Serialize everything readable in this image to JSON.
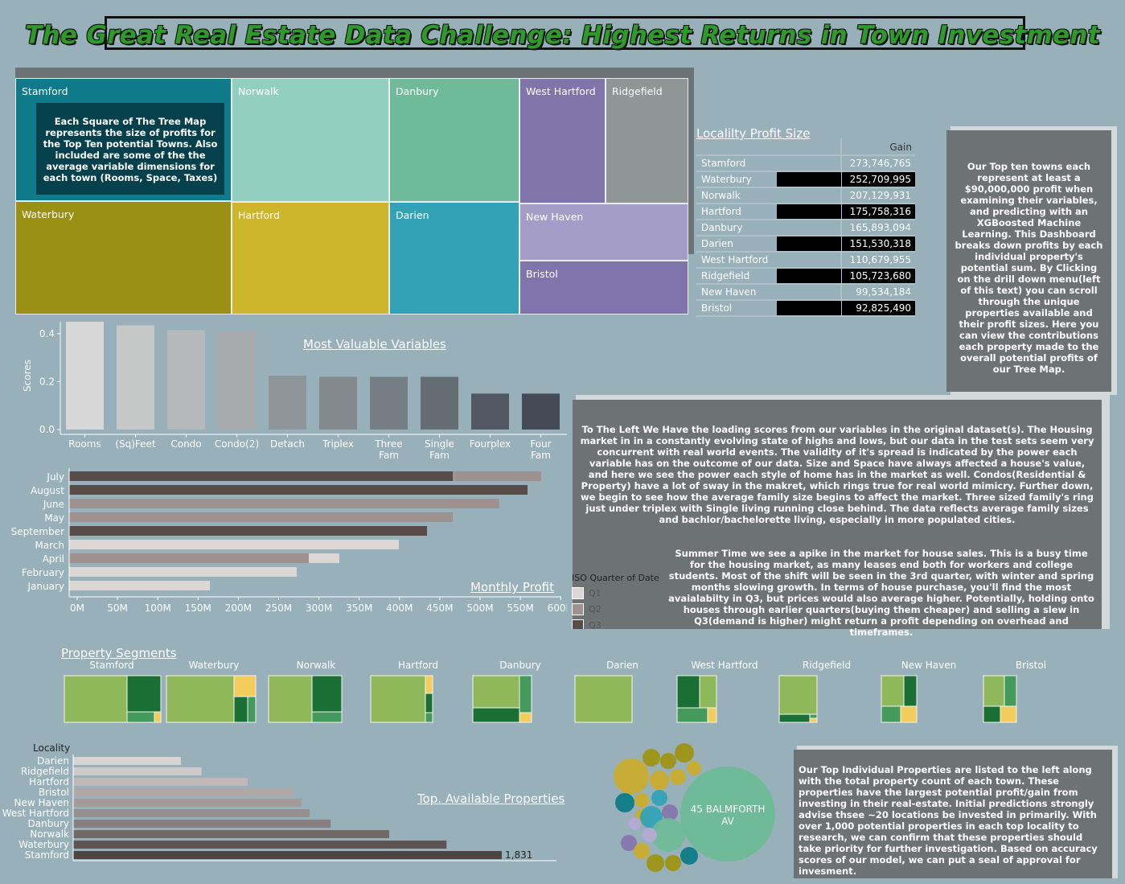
{
  "title": "The Great Real Estate Data Challenge: Highest Returns in Town Investment",
  "treemap": {
    "note": "Each Square of The Tree Map represents the size of profits for the Top Ten potential Towns. Also included are some of the the average variable dimensions for each town (Rooms, Space, Taxes)",
    "tiles": [
      {
        "label": "Stamford",
        "color": "#0f7a8a"
      },
      {
        "label": "Norwalk",
        "color": "#93cfbf"
      },
      {
        "label": "Danbury",
        "color": "#6fba98"
      },
      {
        "label": "West Hartford",
        "color": "#8075aa"
      },
      {
        "label": "Ridgefield",
        "color": "#8f9696"
      },
      {
        "label": "Waterbury",
        "color": "#9a9014"
      },
      {
        "label": "Hartford",
        "color": "#cdb52c"
      },
      {
        "label": "Darien",
        "color": "#34a2b6"
      },
      {
        "label": "New Haven",
        "color": "#a39dc8"
      },
      {
        "label": "Bristol",
        "color": "#8074ad"
      }
    ]
  },
  "profit_table": {
    "title": "Localilty Profit Size",
    "header": "Gain",
    "rows": [
      {
        "town": "Stamford",
        "gain": "273,746,765"
      },
      {
        "town": "Waterbury",
        "gain": "252,709,995"
      },
      {
        "town": "Norwalk",
        "gain": "207,129,931"
      },
      {
        "town": "Hartford",
        "gain": "175,758,316"
      },
      {
        "town": "Danbury",
        "gain": "165,893,094"
      },
      {
        "town": "Darien",
        "gain": "151,530,318"
      },
      {
        "town": "West Hartford",
        "gain": "110,679,955"
      },
      {
        "town": "Ridgefield",
        "gain": "105,723,680"
      },
      {
        "town": "New Haven",
        "gain": "99,534,184"
      },
      {
        "town": "Bristol",
        "gain": "92,825,490"
      }
    ]
  },
  "right_note": "Our Top ten towns each represent at least a $90,000,000 profit when examining their variables, and predicting with an XGBoosted Machine Learning. This Dashboard breaks down profits by each individual property's  potential sum. By Clicking on the drill down menu(left of this text) you can scroll through the unique properties available and their profit sizes. Here you can view the contributions each property made to the overall potential profits of our Tree Map.",
  "variables_note": "To The Left We Have the loading scores from our variables in the original dataset(s). The Housing market in in a constantly evolving state of highs and lows, but our data in the test sets seem very concurrent with real world events. The validity of it's spread is indicated by the power each variable has on the outcome of our data. Size and Space have always affected a house's value, and here we see the power each style of home has in the market as well. Condos(Residential & Property) have a lot of sway in the makret, which rings true for real world mimicry. Further down, we begin to see how the average family size begins to affect the market. Three sized family's  ring just under triplex with Single living running close behind. The data reflects average family sizes and bachlor/bachelorette living, especially in more populated cities.",
  "monthly_note": "Summer Time we see a apike in the market for house sales. This is a busy time for the housing market, as many leases end both for workers and college students. Most of the shift will be seen in the 3rd quarter, with winter and spring months slowing growth. In terms of house purchase, you'll find the most avaialabilty in Q3, but prices would also average higher. Potentially, holding onto houses through earlier quarters(buying them cheaper) and selling a slew in Q3(demand is higher)  might return a profit depending on overhead and timeframes.",
  "legend": {
    "title": "ISO Quarter of Date",
    "items": [
      {
        "label": "Q1",
        "color": "#dcd6d4"
      },
      {
        "label": "Q2",
        "color": "#9e9290"
      },
      {
        "label": "Q3",
        "color": "#574c4a"
      }
    ]
  },
  "segments_title": "Property Segments",
  "segment_towns": [
    "Stamford",
    "Waterbury",
    "Norwalk",
    "Hartford",
    "Danbury",
    "Darien",
    "West Hartford",
    "Ridgefield",
    "New Haven",
    "Bristol"
  ],
  "bubble_label": "45 BALMFORTH AV",
  "bottom_note": "Our Top Individual Properties are listed to the left along with the total property count of each town. These properties have the largest potential profit/gain from investing in their real-estate. Initial predictions strongly advise thsee ~20 locations be invested in primarily. With over 1,000 potential properties in each top locality to research, we can confirm that these properties should take priority for further investigation. Based on accuracy scores of our model, we can put a seal of approval for invesment.",
  "chart_data": [
    {
      "type": "bar",
      "title": "Most Valuable Variables",
      "ylabel": "Scores",
      "categories": [
        "Rooms",
        "(Sq)Feet",
        "Condo",
        "Condo(2)",
        "Detach",
        "Triplex",
        "Three Fam",
        "Single Fam",
        "Fourplex",
        "Four Fam"
      ],
      "values": [
        0.45,
        0.435,
        0.415,
        0.41,
        0.225,
        0.22,
        0.22,
        0.22,
        0.15,
        0.15
      ],
      "yticks": [
        "0.0",
        "0.2",
        "0.4"
      ],
      "ylim": [
        0,
        0.45
      ]
    },
    {
      "type": "bar",
      "title": "Monthly Profit",
      "orientation": "horizontal",
      "categories": [
        "July",
        "August",
        "June",
        "May",
        "September",
        "March",
        "April",
        "February",
        "January"
      ],
      "series": [
        {
          "name": "Q1",
          "values": [
            0,
            0,
            0,
            0,
            0,
            410,
            0,
            283,
            175
          ]
        },
        {
          "name": "Q2",
          "values": [
            110,
            0,
            535,
            477,
            0,
            0,
            0,
            0,
            0
          ]
        },
        {
          "name": "Q3",
          "values": [
            477,
            570,
            0,
            0,
            445,
            0,
            0,
            0,
            0
          ]
        }
      ],
      "stack_order_note": "",
      "april_q2": 298,
      "april_q1_extra": 38,
      "xticks": [
        "0M",
        "50M",
        "100M",
        "150M",
        "200M",
        "250M",
        "300M",
        "350M",
        "400M",
        "450M",
        "500M",
        "550M",
        "600M"
      ],
      "xlim": [
        0,
        610
      ]
    },
    {
      "type": "bar",
      "title": "Top. Available Properties",
      "orientation": "horizontal",
      "axis_label": "Locality",
      "categories": [
        "Darien",
        "Ridgefield",
        "Hartford",
        "Bristol",
        "New Haven",
        "West Hartford",
        "Danbury",
        "Norwalk",
        "Waterbury",
        "Stamford"
      ],
      "values": [
        460,
        548,
        745,
        940,
        975,
        1010,
        1100,
        1350,
        1595,
        1831
      ],
      "data_labels": [
        "",
        "",
        "",
        "",
        "",
        "",
        "",
        "",
        "",
        "1,831"
      ],
      "xlim": [
        0,
        2070
      ]
    }
  ]
}
